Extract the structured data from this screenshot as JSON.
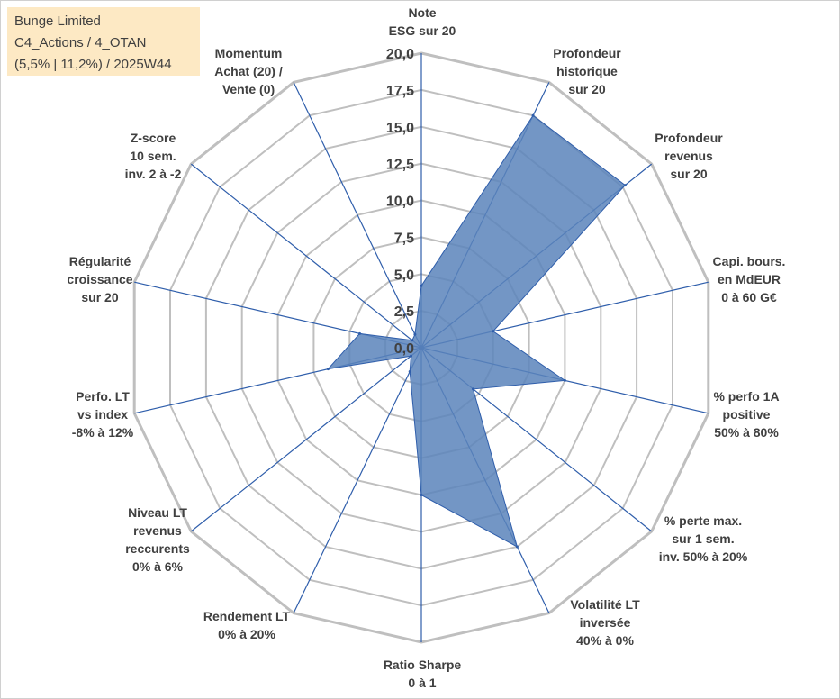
{
  "info": {
    "line1": "Bunge Limited",
    "line2": "C4_Actions / 4_OTAN",
    "line3": "(5,5% | 11,2%) / 2025W44"
  },
  "colors": {
    "fill": "#5b84bb",
    "axis": "#2f5eab",
    "grid": "#bfbfbf",
    "text": "#404040",
    "info_bg": "#fde9c4"
  },
  "chart_data": {
    "type": "radar",
    "title": "",
    "range": [
      0,
      20
    ],
    "ticks": [
      "0,0",
      "2,5",
      "5,0",
      "7,5",
      "10,0",
      "12,5",
      "15,0",
      "17,5",
      "20,0"
    ],
    "axes": [
      {
        "label": [
          "Note",
          "ESG sur 20"
        ],
        "value": 4.2
      },
      {
        "label": [
          "Profondeur",
          "historique",
          "sur 20"
        ],
        "value": 17.5
      },
      {
        "label": [
          "Profondeur",
          "revenus",
          "sur 20"
        ],
        "value": 17.7
      },
      {
        "label": [
          "Capi. bours.",
          "en MdEUR",
          "0 à 60 G€"
        ],
        "value": 5.0
      },
      {
        "label": [
          "% perfo 1A",
          "positive",
          "50% à 80%"
        ],
        "value": 10.0
      },
      {
        "label": [
          "% perte max.",
          "sur 1 sem.",
          "inv. 50% à 20%"
        ],
        "value": 4.5
      },
      {
        "label": [
          "Volatilité LT",
          "inversée",
          "40% à 0%"
        ],
        "value": 15.0
      },
      {
        "label": [
          "Ratio Sharpe",
          "0 à 1"
        ],
        "value": 10.0
      },
      {
        "label": [
          "Rendement LT",
          "0% à 20%"
        ],
        "value": 1.8
      },
      {
        "label": [
          "Niveau LT",
          "revenus",
          "reccurents",
          "0% à 6%"
        ],
        "value": 0.9
      },
      {
        "label": [
          "Perfo. LT",
          "vs index",
          "-8% à 12%"
        ],
        "value": 6.5
      },
      {
        "label": [
          "Régularité",
          "croissance",
          "sur 20"
        ],
        "value": 4.3
      },
      {
        "label": [
          "Z-score",
          "10 sem.",
          "inv. 2 à -2"
        ],
        "value": 0.8
      },
      {
        "label": [
          "Momentum",
          "Achat (20) /",
          "Vente (0)"
        ],
        "value": 1.0
      }
    ]
  }
}
